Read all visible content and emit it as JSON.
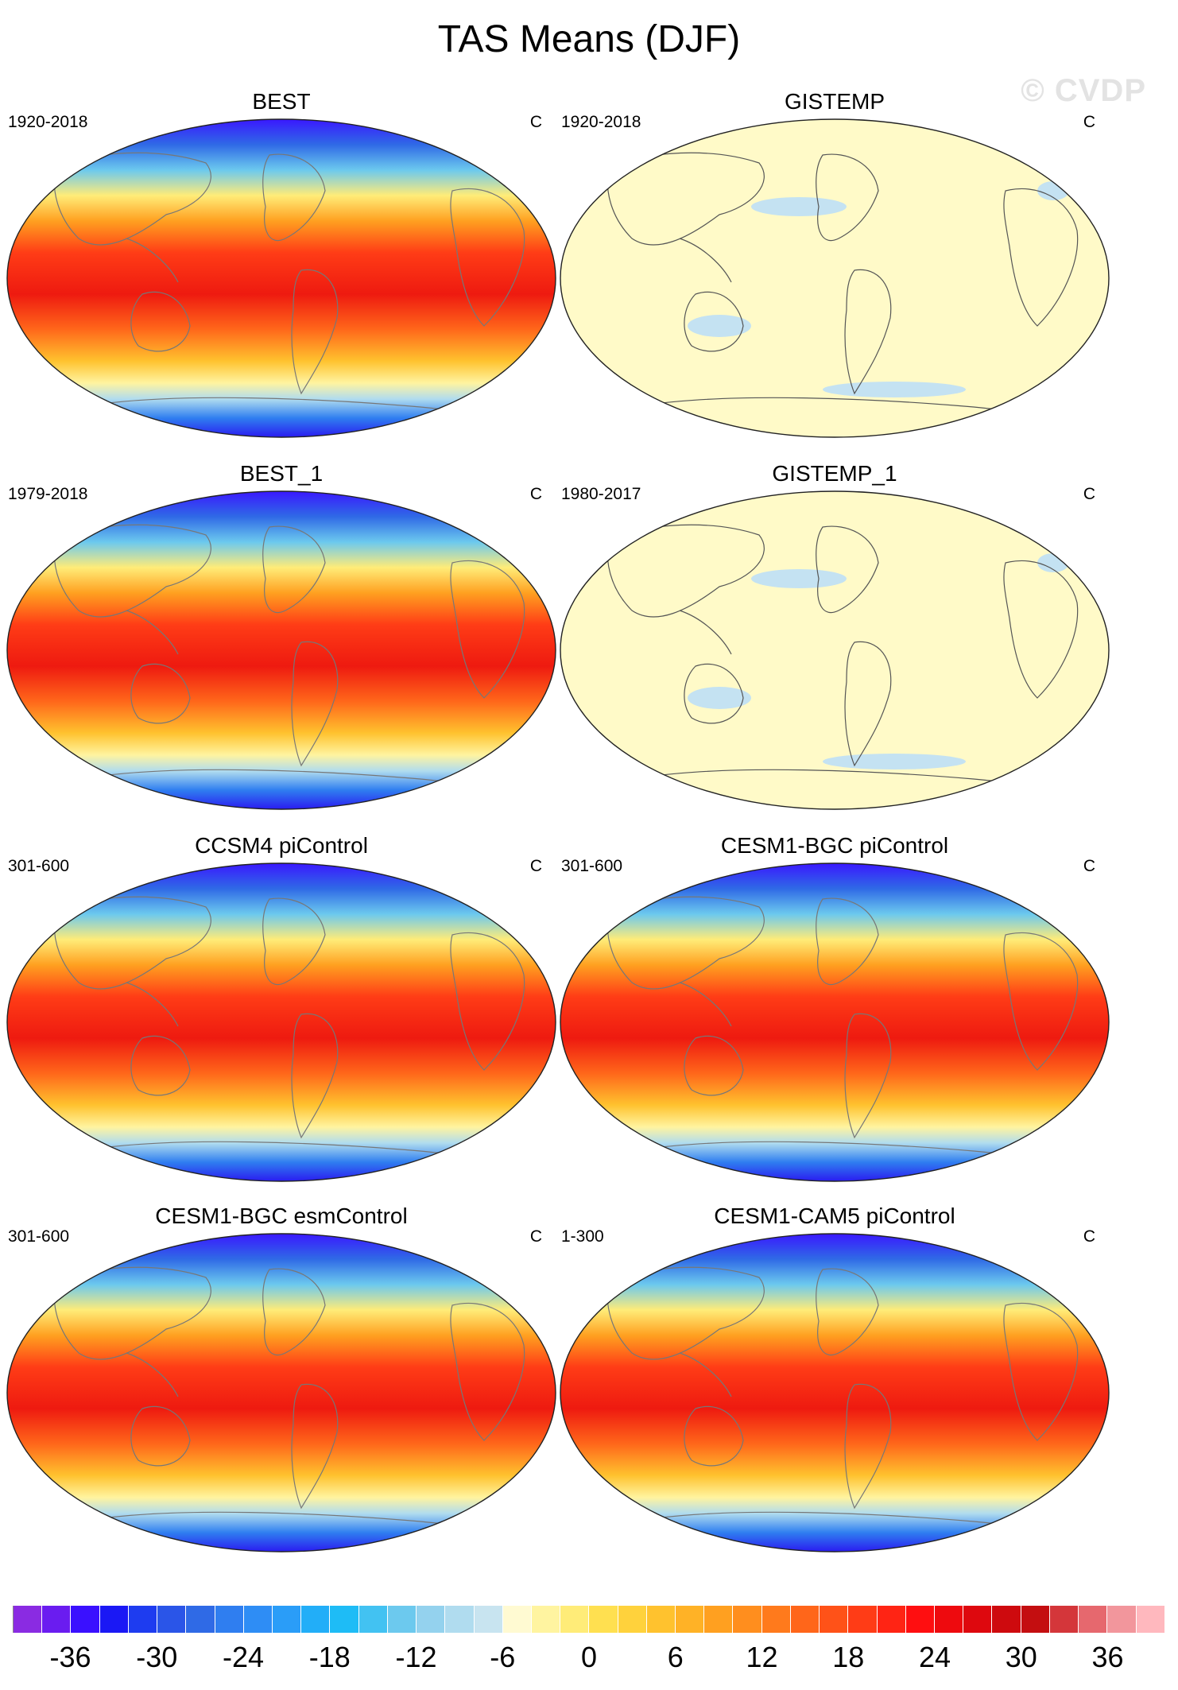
{
  "title": "TAS Means (DJF)",
  "watermark": "© CVDP",
  "panels": [
    {
      "title": "BEST",
      "years": "1920-2018",
      "units": "C",
      "kind": "model"
    },
    {
      "title": "GISTEMP",
      "years": "1920-2018",
      "units": "C",
      "kind": "anom"
    },
    {
      "title": "BEST_1",
      "years": "1979-2018",
      "units": "C",
      "kind": "model"
    },
    {
      "title": "GISTEMP_1",
      "years": "1980-2017",
      "units": "C",
      "kind": "anom"
    },
    {
      "title": "CCSM4 piControl",
      "years": "301-600",
      "units": "C",
      "kind": "model"
    },
    {
      "title": "CESM1-BGC piControl",
      "years": "301-600",
      "units": "C",
      "kind": "model"
    },
    {
      "title": "CESM1-BGC esmControl",
      "years": "301-600",
      "units": "C",
      "kind": "model"
    },
    {
      "title": "CESM1-CAM5 piControl",
      "years": "1-300",
      "units": "C",
      "kind": "model"
    }
  ],
  "colorbar": {
    "labels": [
      "-36",
      "-30",
      "-24",
      "-18",
      "-12",
      "-6",
      "0",
      "6",
      "12",
      "18",
      "24",
      "30",
      "36"
    ],
    "colors": [
      "#8a2be2",
      "#6a1cf0",
      "#3a10ff",
      "#1a18f5",
      "#1e3cf0",
      "#2a55e8",
      "#2f6ae6",
      "#2f7ef0",
      "#2e8df5",
      "#2a9df8",
      "#22aef8",
      "#1ebcf6",
      "#42c2f2",
      "#6cc9ee",
      "#94d2ee",
      "#b0dcef",
      "#c8e4f0",
      "#fffad2",
      "#fff4a0",
      "#ffec78",
      "#ffe050",
      "#ffd23c",
      "#ffc22e",
      "#ffb226",
      "#ffa020",
      "#ff8e1e",
      "#ff7a1c",
      "#ff661a",
      "#ff5218",
      "#ff3c16",
      "#ff2414",
      "#ff0e10",
      "#ee0a0e",
      "#de080e",
      "#ce0a0e",
      "#c40e10",
      "#d4363a",
      "#e6686e",
      "#f2969c",
      "#ffb8be"
    ]
  }
}
